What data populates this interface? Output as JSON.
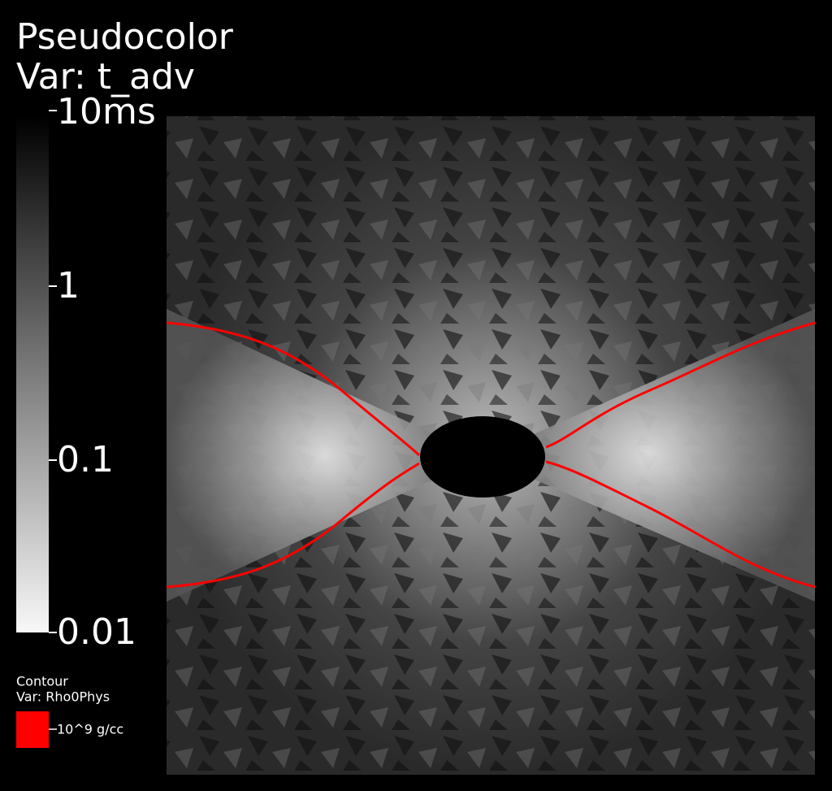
{
  "pseudocolor_legend": {
    "title": "Pseudocolor",
    "variable": "Var: t_adv",
    "ticks": [
      "10ms",
      "1",
      "0.1",
      "0.01"
    ]
  },
  "contour_legend": {
    "title": "Contour",
    "variable": "Var: Rho0Phys",
    "level": "10^9 g/cc"
  }
}
